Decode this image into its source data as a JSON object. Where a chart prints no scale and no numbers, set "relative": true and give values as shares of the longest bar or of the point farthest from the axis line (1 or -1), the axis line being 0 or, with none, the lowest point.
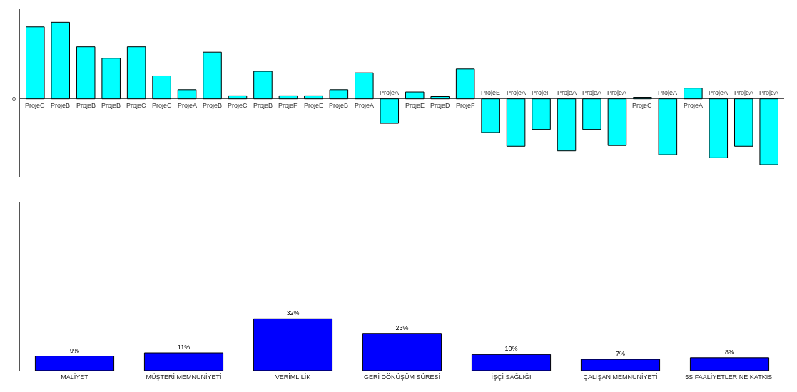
{
  "chart_data": [
    {
      "type": "bar",
      "relative": true,
      "categories": [
        "ProjeC",
        "ProjeB",
        "ProjeB",
        "ProjeB",
        "ProjeC",
        "ProjeC",
        "ProjeA",
        "ProjeB",
        "ProjeC",
        "ProjeB",
        "ProjeF",
        "ProjeE",
        "ProjeB",
        "ProjeA",
        "ProjeA",
        "ProjeE",
        "ProjeD",
        "ProjeF",
        "ProjeE",
        "ProjeA",
        "ProjeF",
        "ProjeA",
        "ProjeA",
        "ProjeA",
        "ProjeC",
        "ProjeA",
        "ProjeA",
        "ProjeA",
        "ProjeA",
        "ProjeA"
      ],
      "color": "#00ffff",
      "values": [
        0.94,
        1.0,
        0.68,
        0.53,
        0.68,
        0.3,
        0.12,
        0.61,
        0.04,
        0.36,
        0.04,
        0.04,
        0.12,
        0.34,
        -0.32,
        0.09,
        0.03,
        0.39,
        -0.44,
        -0.62,
        -0.4,
        -0.68,
        -0.4,
        -0.61,
        0.02,
        -0.73,
        0.14,
        -0.77,
        -0.62,
        -0.86
      ],
      "annotations": [
        "0"
      ]
    },
    {
      "type": "bar",
      "categories": [
        "MALİYET",
        "MÜŞTERİ MEMNUNİYETİ",
        "VERİMLİLİK",
        "GERİ DÖNÜŞÜM SÜRESİ",
        "İŞÇİ SAĞLIĞI",
        "ÇALIŞAN MEMNUNİYETİ",
        "5S FAALİYETLERİNE KATKISI"
      ],
      "color": "#0000ff",
      "values": [
        9,
        11,
        32,
        23,
        10,
        7,
        8
      ],
      "value_labels": [
        "9%",
        "11%",
        "32%",
        "23%",
        "10%",
        "7%",
        "8%"
      ],
      "ylim": [
        0,
        104
      ],
      "tick_labels": "x"
    }
  ]
}
